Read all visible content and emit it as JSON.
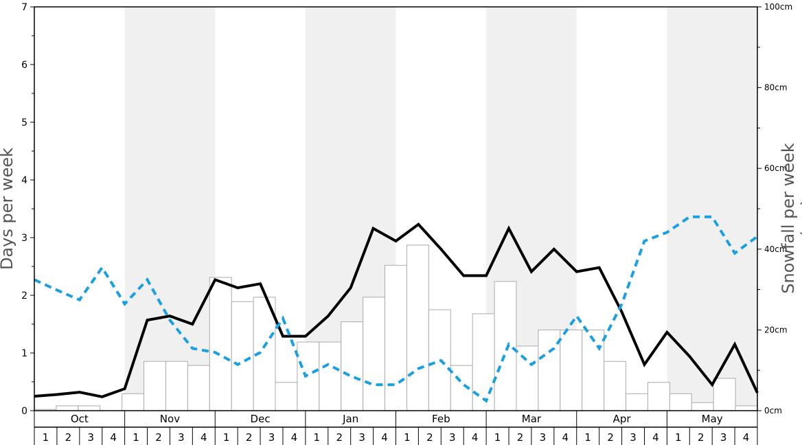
{
  "chart_data": {
    "type": "bar+line",
    "ylabel_left": "Days per week",
    "ylabel_right": "Snowfall per week (cm)",
    "left_axis": {
      "range": [
        0,
        7
      ],
      "ticks": [
        "0",
        "1",
        "2",
        "3",
        "4",
        "5",
        "6",
        "7"
      ]
    },
    "right_axis": {
      "range": [
        0,
        100
      ],
      "ticks": [
        "0cm",
        "20cm",
        "40cm",
        "60cm",
        "80cm",
        "100cm"
      ]
    },
    "months": [
      "Oct",
      "Nov",
      "Dec",
      "Jan",
      "Feb",
      "Mar",
      "Apr",
      "May"
    ],
    "weeks": [
      "1",
      "2",
      "3",
      "4"
    ],
    "shaded_months": [
      "Nov",
      "Jan",
      "Mar",
      "May"
    ],
    "colors": {
      "bars_fill": "#ffffff",
      "bars_stroke": "#aaaaaa",
      "solid_line": "#000000",
      "dashed_line": "#1a9fe0",
      "shade": "#f0f0f0"
    },
    "series": [
      {
        "type": "bar",
        "axis": "right",
        "values": [
          0.3,
          1.2,
          1.2,
          0.0,
          4.2,
          12.2,
          12.2,
          11.2,
          33.0,
          27.0,
          28.1,
          7.0,
          17.0,
          17.0,
          22.0,
          28.1,
          36.0,
          41.0,
          25.0,
          11.2,
          24.0,
          32.0,
          16.0,
          20.0,
          20.0,
          20.0,
          12.2,
          4.2,
          7.0,
          4.2,
          2.0,
          8.0,
          1.2
        ]
      },
      {
        "type": "line",
        "style": "solid",
        "axis": "left",
        "values": [
          0.25,
          0.28,
          0.32,
          0.24,
          0.38,
          1.57,
          1.64,
          1.5,
          2.27,
          2.13,
          2.2,
          1.29,
          1.29,
          1.64,
          2.13,
          3.16,
          2.94,
          3.23,
          2.8,
          2.34,
          2.34,
          3.16,
          2.41,
          2.8,
          2.41,
          2.48,
          1.71,
          0.8,
          1.36,
          0.94,
          0.45,
          1.15,
          0.31
        ]
      },
      {
        "type": "line",
        "style": "dashed",
        "axis": "left",
        "values": [
          2.27,
          2.09,
          1.92,
          2.48,
          1.85,
          2.27,
          1.57,
          1.08,
          1.01,
          0.8,
          1.01,
          1.6,
          0.6,
          0.8,
          0.6,
          0.45,
          0.45,
          0.73,
          0.87,
          0.45,
          0.17,
          1.15,
          0.8,
          1.08,
          1.64,
          1.08,
          1.85,
          2.94,
          3.09,
          3.36,
          3.36,
          2.73,
          3.02
        ]
      }
    ]
  }
}
